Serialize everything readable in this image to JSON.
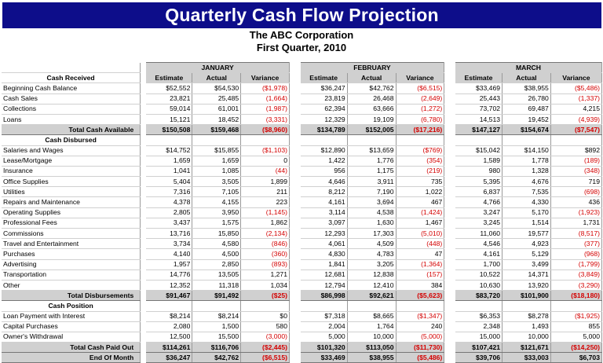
{
  "title": "Quarterly Cash Flow Projection",
  "company": "The ABC Corporation",
  "period": "First Quarter, 2010",
  "months": [
    "JANUARY",
    "FEBRUARY",
    "MARCH"
  ],
  "col_headers": [
    "Estimate",
    "Actual",
    "Variance"
  ],
  "sections": [
    {
      "title": "Cash Received",
      "rows": [
        {
          "label": "Beginning Cash Balance",
          "values": [
            "$52,552",
            "$54,530",
            "($1,978)",
            "$36,247",
            "$42,762",
            "($6,515)",
            "$33,469",
            "$38,955",
            "($5,486)"
          ]
        },
        {
          "label": "Cash Sales",
          "values": [
            "23,821",
            "25,485",
            "(1,664)",
            "23,819",
            "26,468",
            "(2,649)",
            "25,443",
            "26,780",
            "(1,337)"
          ]
        },
        {
          "label": "Collections",
          "values": [
            "59,014",
            "61,001",
            "(1,987)",
            "62,394",
            "63,666",
            "(1,272)",
            "73,702",
            "69,487",
            "4,215"
          ]
        },
        {
          "label": "Loans",
          "values": [
            "15,121",
            "18,452",
            "(3,331)",
            "12,329",
            "19,109",
            "(6,780)",
            "14,513",
            "19,452",
            "(4,939)"
          ]
        }
      ],
      "total": {
        "label": "Total Cash Available",
        "values": [
          "$150,508",
          "$159,468",
          "($8,960)",
          "$134,789",
          "$152,005",
          "($17,216)",
          "$147,127",
          "$154,674",
          "($7,547)"
        ]
      }
    },
    {
      "title": "Cash Disbursed",
      "rows": [
        {
          "label": "Salaries and Wages",
          "values": [
            "$14,752",
            "$15,855",
            "($1,103)",
            "$12,890",
            "$13,659",
            "($769)",
            "$15,042",
            "$14,150",
            "$892"
          ]
        },
        {
          "label": "Lease/Mortgage",
          "values": [
            "1,659",
            "1,659",
            "0",
            "1,422",
            "1,776",
            "(354)",
            "1,589",
            "1,778",
            "(189)"
          ]
        },
        {
          "label": "Insurance",
          "values": [
            "1,041",
            "1,085",
            "(44)",
            "956",
            "1,175",
            "(219)",
            "980",
            "1,328",
            "(348)"
          ]
        },
        {
          "label": "Office Supplies",
          "values": [
            "5,404",
            "3,505",
            "1,899",
            "4,646",
            "3,911",
            "735",
            "5,395",
            "4,676",
            "719"
          ]
        },
        {
          "label": "Utilities",
          "values": [
            "7,316",
            "7,105",
            "211",
            "8,212",
            "7,190",
            "1,022",
            "6,837",
            "7,535",
            "(698)"
          ]
        },
        {
          "label": "Repairs and Maintenance",
          "values": [
            "4,378",
            "4,155",
            "223",
            "4,161",
            "3,694",
            "467",
            "4,766",
            "4,330",
            "436"
          ]
        },
        {
          "label": "Operating Supplies",
          "values": [
            "2,805",
            "3,950",
            "(1,145)",
            "3,114",
            "4,538",
            "(1,424)",
            "3,247",
            "5,170",
            "(1,923)"
          ]
        },
        {
          "label": "Professional Fees",
          "values": [
            "3,437",
            "1,575",
            "1,862",
            "3,097",
            "1,630",
            "1,467",
            "3,245",
            "1,514",
            "1,731"
          ]
        },
        {
          "label": "Commissions",
          "values": [
            "13,716",
            "15,850",
            "(2,134)",
            "12,293",
            "17,303",
            "(5,010)",
            "11,060",
            "19,577",
            "(8,517)"
          ]
        },
        {
          "label": "Travel and Entertainment",
          "values": [
            "3,734",
            "4,580",
            "(846)",
            "4,061",
            "4,509",
            "(448)",
            "4,546",
            "4,923",
            "(377)"
          ]
        },
        {
          "label": "Purchases",
          "values": [
            "4,140",
            "4,500",
            "(360)",
            "4,830",
            "4,783",
            "47",
            "4,161",
            "5,129",
            "(968)"
          ]
        },
        {
          "label": "Advertising",
          "values": [
            "1,957",
            "2,850",
            "(893)",
            "1,841",
            "3,205",
            "(1,364)",
            "1,700",
            "3,499",
            "(1,799)"
          ]
        },
        {
          "label": "Transportation",
          "values": [
            "14,776",
            "13,505",
            "1,271",
            "12,681",
            "12,838",
            "(157)",
            "10,522",
            "14,371",
            "(3,849)"
          ]
        },
        {
          "label": "Other",
          "values": [
            "12,352",
            "11,318",
            "1,034",
            "12,794",
            "12,410",
            "384",
            "10,630",
            "13,920",
            "(3,290)"
          ]
        }
      ],
      "total": {
        "label": "Total Disbursements",
        "values": [
          "$91,467",
          "$91,492",
          "($25)",
          "$86,998",
          "$92,621",
          "($5,623)",
          "$83,720",
          "$101,900",
          "($18,180)"
        ]
      }
    },
    {
      "title": "Cash Position",
      "rows": [
        {
          "label": "Loan Payment with Interest",
          "values": [
            "$8,214",
            "$8,214",
            "$0",
            "$7,318",
            "$8,665",
            "($1,347)",
            "$6,353",
            "$8,278",
            "($1,925)"
          ]
        },
        {
          "label": "Capital Purchases",
          "values": [
            "2,080",
            "1,500",
            "580",
            "2,004",
            "1,764",
            "240",
            "2,348",
            "1,493",
            "855"
          ]
        },
        {
          "label": "Owner's Withdrawal",
          "values": [
            "12,500",
            "15,500",
            "(3,000)",
            "5,000",
            "10,000",
            "(5,000)",
            "15,000",
            "10,000",
            "5,000"
          ]
        }
      ],
      "totals": [
        {
          "label": "Total Cash Paid Out",
          "values": [
            "$114,261",
            "$116,706",
            "($2,445)",
            "$101,320",
            "$113,050",
            "($11,730)",
            "$107,421",
            "$121,671",
            "($14,250)"
          ]
        },
        {
          "label": "End Of Month",
          "values": [
            "$36,247",
            "$42,762",
            "($6,515)",
            "$33,469",
            "$38,955",
            "($5,486)",
            "$39,706",
            "$33,003",
            "$6,703"
          ]
        }
      ]
    }
  ],
  "colors": {
    "banner": "#0d0d8a",
    "header_fill": "#d0d0d0",
    "negative": "#d40000"
  }
}
